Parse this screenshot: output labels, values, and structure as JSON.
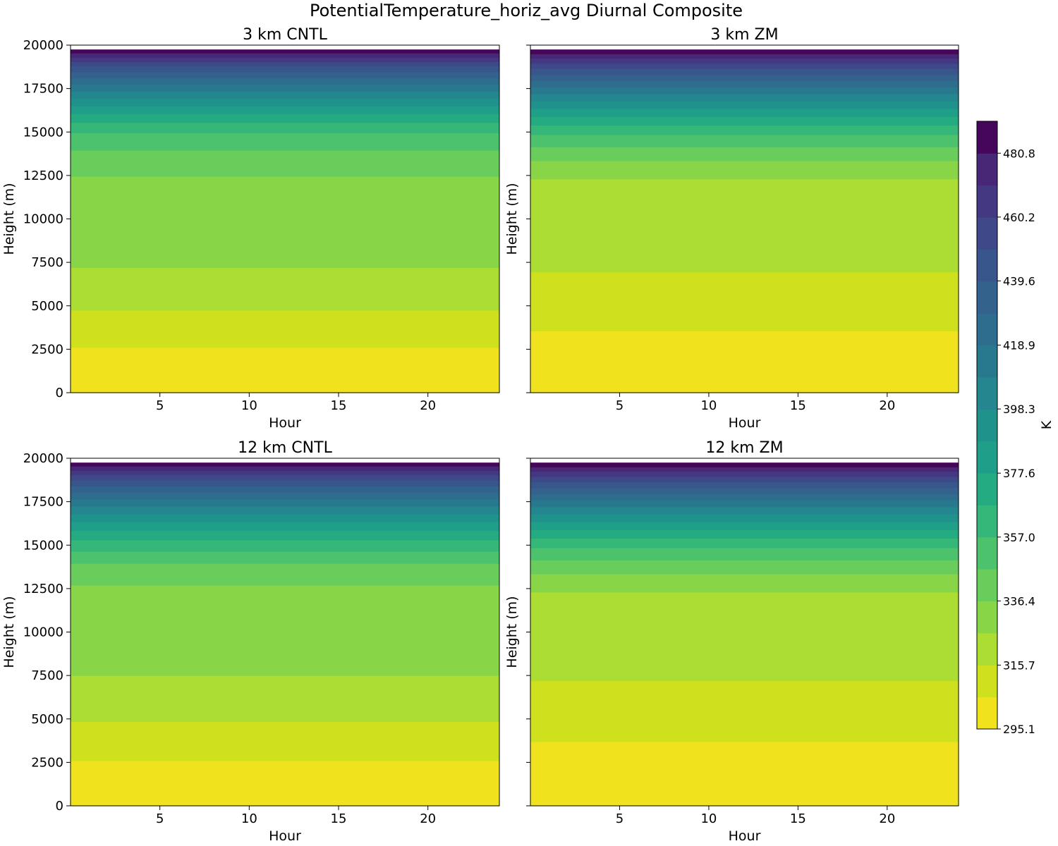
{
  "figure_title": "PotentialTemperature_horiz_avg Diurnal Composite",
  "chart_data": {
    "type": "heatmap",
    "title": "PotentialTemperature_horiz_avg Diurnal Composite",
    "panels": [
      {
        "title": "3 km CNTL",
        "xlabel": "Hour",
        "ylabel": "Height (m)",
        "xlim": [
          0,
          24
        ],
        "ylim": [
          0,
          20000
        ],
        "xticks": [
          5,
          10,
          15,
          20
        ],
        "yticks": [
          0,
          2500,
          5000,
          7500,
          10000,
          12500,
          15000,
          17500,
          20000
        ],
        "show_ytick_labels": true,
        "band_tops_m": [
          2600,
          4750,
          7200,
          12450,
          13950,
          14950,
          15550,
          16050,
          16500,
          16950,
          17350,
          17750,
          18100,
          18450,
          18800,
          19050,
          19300,
          19550,
          19750
        ]
      },
      {
        "title": "3 km ZM",
        "xlabel": "Hour",
        "ylabel": "Height (m)",
        "xlim": [
          0,
          24
        ],
        "ylim": [
          0,
          20000
        ],
        "xticks": [
          5,
          10,
          15,
          20
        ],
        "yticks": [
          0,
          2500,
          5000,
          7500,
          10000,
          12500,
          15000,
          17500,
          20000
        ],
        "show_ytick_labels": false,
        "band_tops_m": [
          3550,
          6950,
          12300,
          13350,
          14150,
          14850,
          15400,
          15900,
          16350,
          16800,
          17200,
          17600,
          17950,
          18300,
          18650,
          18950,
          19250,
          19500,
          19750
        ]
      },
      {
        "title": "12 km CNTL",
        "xlabel": "Hour",
        "ylabel": "Height (m)",
        "xlim": [
          0,
          24
        ],
        "ylim": [
          0,
          20000
        ],
        "xticks": [
          5,
          10,
          15,
          20
        ],
        "yticks": [
          0,
          2500,
          5000,
          7500,
          10000,
          12500,
          15000,
          17500,
          20000
        ],
        "show_ytick_labels": true,
        "band_tops_m": [
          2600,
          4850,
          7500,
          12700,
          13950,
          14650,
          15300,
          15850,
          16350,
          16800,
          17250,
          17650,
          18050,
          18400,
          18750,
          19050,
          19300,
          19550,
          19750
        ]
      },
      {
        "title": "12 km ZM",
        "xlabel": "Hour",
        "ylabel": "Height (m)",
        "xlim": [
          0,
          24
        ],
        "ylim": [
          0,
          20000
        ],
        "xticks": [
          5,
          10,
          15,
          20
        ],
        "yticks": [
          0,
          2500,
          5000,
          7500,
          10000,
          12500,
          15000,
          17500,
          20000
        ],
        "show_ytick_labels": false,
        "band_tops_m": [
          3700,
          7200,
          12300,
          13350,
          14150,
          14850,
          15400,
          15900,
          16350,
          16800,
          17200,
          17600,
          17950,
          18300,
          18650,
          18950,
          19250,
          19500,
          19750
        ]
      }
    ],
    "colorbar": {
      "label": "K",
      "min": 295.1,
      "max": 491.1,
      "tick_values": [
        295.1,
        315.7,
        336.4,
        357.0,
        377.6,
        398.3,
        418.9,
        439.6,
        460.2,
        480.8
      ],
      "tick_labels": [
        "295.1",
        "315.7",
        "336.4",
        "357.0",
        "377.6",
        "398.3",
        "418.9",
        "439.6",
        "460.2",
        "480.8"
      ],
      "levels": 19,
      "colors": [
        "#f0e31e",
        "#cfe11d",
        "#abdd32",
        "#89d548",
        "#69cd5b",
        "#4cc26c",
        "#35b779",
        "#25ab82",
        "#1f9e89",
        "#20928c",
        "#24868e",
        "#29798e",
        "#2e6d8e",
        "#33628d",
        "#39568c",
        "#3f4889",
        "#453882",
        "#482777",
        "#46075a"
      ]
    }
  }
}
